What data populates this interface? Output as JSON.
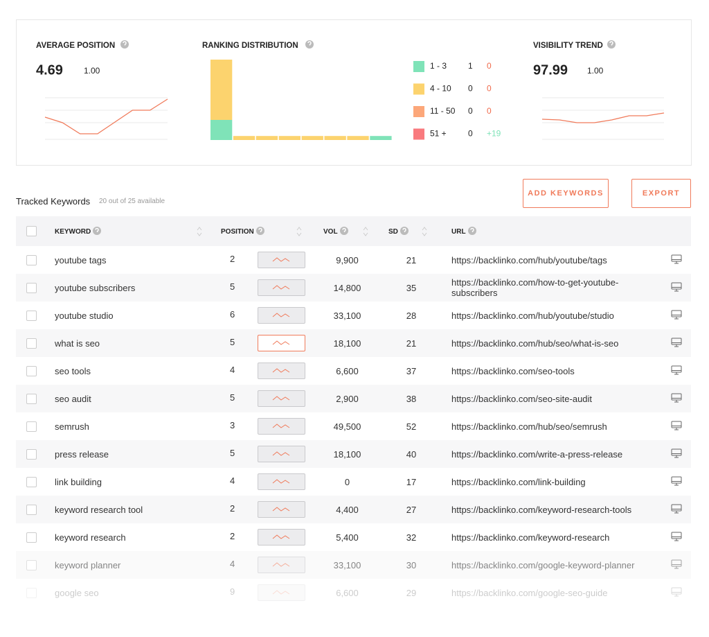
{
  "summary": {
    "average_position": {
      "title": "AVERAGE POSITION",
      "value": "4.69",
      "change": "1.00",
      "trend": {
        "color": "#f07a5a",
        "ylim": [
          0,
          60
        ],
        "values": [
          32,
          24,
          8,
          8,
          25,
          42,
          42,
          58
        ]
      }
    },
    "ranking_distribution": {
      "title": "RANKING DISTRIBUTION",
      "bars": {
        "ylim": [
          0,
          4
        ],
        "series": [
          {
            "color": "#7fe3b8",
            "values": [
              1,
              0,
              0,
              0,
              0,
              0,
              0,
              0.2
            ]
          },
          {
            "color": "#fcd36e",
            "values": [
              3,
              0.2,
              0.2,
              0.2,
              0.2,
              0.2,
              0.2,
              0
            ]
          }
        ]
      },
      "legend": [
        {
          "label": "1 - 3",
          "color": "#7fe3b8",
          "count": "1",
          "change": "0",
          "change_color": "#f0694a"
        },
        {
          "label": "4 - 10",
          "color": "#fcd36e",
          "count": "0",
          "change": "0",
          "change_color": "#f0694a"
        },
        {
          "label": "11 - 50",
          "color": "#fca77a",
          "count": "0",
          "change": "0",
          "change_color": "#f0694a"
        },
        {
          "label": "51 +",
          "color": "#f97a7e",
          "count": "0",
          "change": "+19",
          "change_color": "#7fe3b8"
        }
      ]
    },
    "visibility_trend": {
      "title": "VISIBILITY TREND",
      "value": "97.99",
      "change": "1.00",
      "trend": {
        "color": "#f07a5a",
        "ylim": [
          0,
          60
        ],
        "values": [
          29,
          28,
          24,
          24,
          28,
          34,
          34,
          38
        ]
      }
    }
  },
  "keywords": {
    "title": "Tracked Keywords",
    "available": "20 out of 25 available",
    "buttons": [
      "ADD KEYWORDS",
      "EXPORT"
    ],
    "columns": [
      "KEYWORD",
      "POSITION",
      "VOL",
      "SD",
      "URL"
    ],
    "rows": [
      [
        "youtube tags",
        "2",
        "9,900",
        "21",
        "https://backlinko.com/hub/youtube/tags"
      ],
      [
        "youtube subscribers",
        "5",
        "14,800",
        "35",
        "https://backlinko.com/how-to-get-youtube-subscribers"
      ],
      [
        "youtube studio",
        "6",
        "33,100",
        "28",
        "https://backlinko.com/hub/youtube/studio"
      ],
      [
        "what is seo",
        "5",
        "18,100",
        "21",
        "https://backlinko.com/hub/seo/what-is-seo"
      ],
      [
        "seo tools",
        "4",
        "6,600",
        "37",
        "https://backlinko.com/seo-tools"
      ],
      [
        "seo audit",
        "5",
        "2,900",
        "38",
        "https://backlinko.com/seo-site-audit"
      ],
      [
        "semrush",
        "3",
        "49,500",
        "52",
        "https://backlinko.com/hub/seo/semrush"
      ],
      [
        "press release",
        "5",
        "18,100",
        "40",
        "https://backlinko.com/write-a-press-release"
      ],
      [
        "link building",
        "4",
        "0",
        "17",
        "https://backlinko.com/link-building"
      ],
      [
        "keyword research tool",
        "2",
        "4,400",
        "27",
        "https://backlinko.com/keyword-research-tools"
      ],
      [
        "keyword research",
        "2",
        "5,400",
        "32",
        "https://backlinko.com/keyword-research"
      ],
      [
        "keyword planner",
        "4",
        "33,100",
        "30",
        "https://backlinko.com/google-keyword-planner"
      ],
      [
        "google seo",
        "9",
        "6,600",
        "29",
        "https://backlinko.com/google-seo-guide"
      ]
    ]
  }
}
